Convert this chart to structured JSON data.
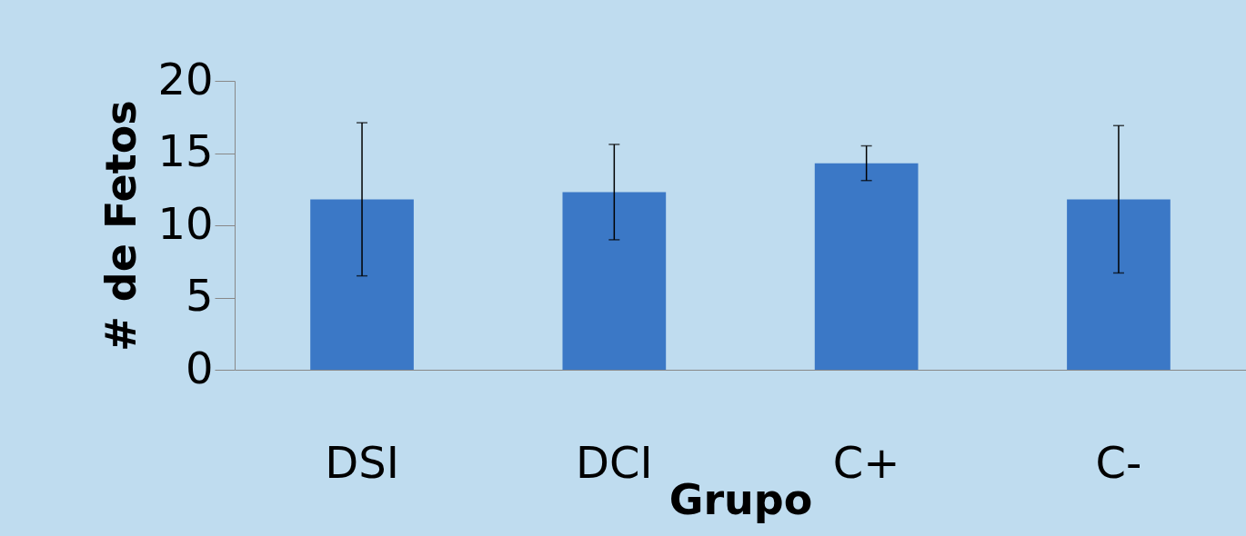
{
  "chart_data": {
    "type": "bar",
    "xlabel": "Grupo",
    "ylabel": "# de Fetos",
    "categories": [
      "DSI",
      "DCI",
      "C+",
      "C-"
    ],
    "values": [
      11.8,
      12.3,
      14.3,
      11.8
    ],
    "errors": [
      5.3,
      3.3,
      1.2,
      5.1
    ],
    "color": "#3b78c6",
    "ylim": [
      0,
      20
    ],
    "yticks": [
      0,
      5,
      10,
      15,
      20
    ],
    "grid": false
  }
}
